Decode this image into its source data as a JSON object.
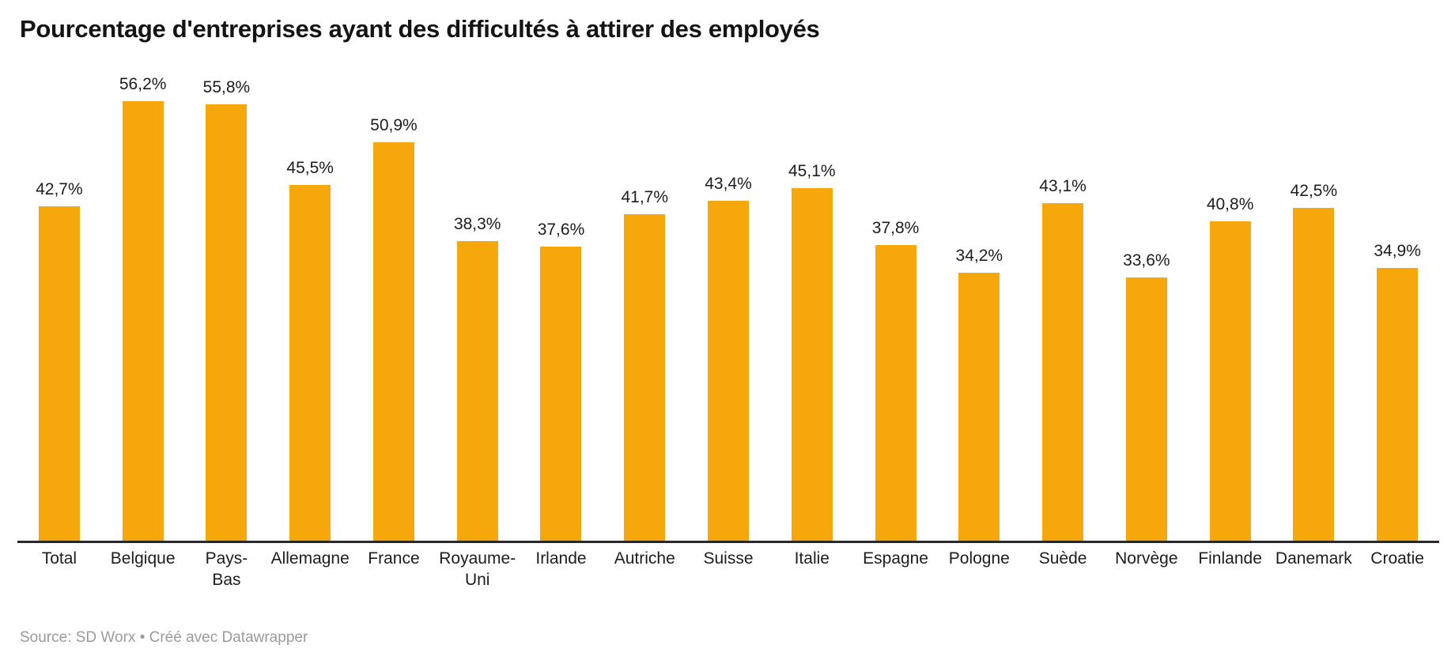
{
  "header": {
    "title": "Pourcentage d'entreprises ayant des difficultés à attirer des employés"
  },
  "chart_data": {
    "type": "bar",
    "title": "Pourcentage d'entreprises ayant des difficultés à attirer des employés",
    "categories": [
      "Total",
      "Belgique",
      "Pays-\nBas",
      "Allemagne",
      "France",
      "Royaume-\nUni",
      "Irlande",
      "Autriche",
      "Suisse",
      "Italie",
      "Espagne",
      "Pologne",
      "Suède",
      "Norvège",
      "Finlande",
      "Danemark",
      "Croatie"
    ],
    "values": [
      42.7,
      56.2,
      55.8,
      45.5,
      50.9,
      38.3,
      37.6,
      41.7,
      43.4,
      45.1,
      37.8,
      34.2,
      43.1,
      33.6,
      40.8,
      42.5,
      34.9
    ],
    "value_labels": [
      "42,7%",
      "56,2%",
      "55,8%",
      "45,5%",
      "50,9%",
      "38,3%",
      "37,6%",
      "41,7%",
      "43,4%",
      "45,1%",
      "37,8%",
      "34,2%",
      "43,1%",
      "33,6%",
      "40,8%",
      "42,5%",
      "34,9%"
    ],
    "xlabel": "",
    "ylabel": "",
    "ylim": [
      0,
      60
    ],
    "grid": false,
    "legend_position": "none",
    "bar_color": "#F6A70B",
    "value_label_color": "#1d1d1d",
    "axis_line_color": "#292929"
  },
  "footer": {
    "source": "Source: SD Worx • Créé avec Datawrapper"
  }
}
